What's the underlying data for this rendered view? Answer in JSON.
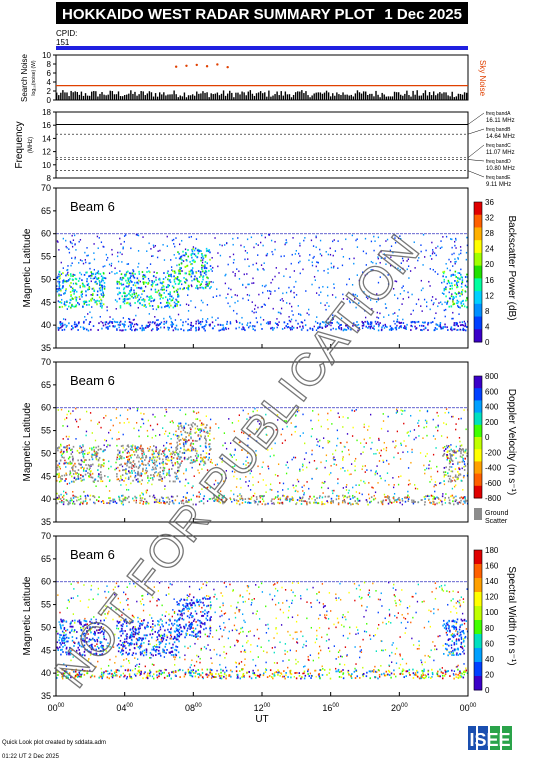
{
  "header": {
    "title": "HOKKAIDO WEST RADAR SUMMARY PLOT",
    "date": "1 Dec 2025",
    "cpid_label": "CPID:",
    "cpid_value": "151"
  },
  "noise_panel": {
    "ylabel": "Search Noise",
    "ylabel_sub": "log₁₀(noise) (W)",
    "right_label": "Sky Noise",
    "yticks": [
      "0",
      "2",
      "4",
      "6",
      "8",
      "10"
    ],
    "ylim": [
      0,
      10
    ],
    "baseline": 3.2,
    "cluster_values": [
      7.4,
      7.6,
      7.8,
      7.5,
      7.9,
      7.3
    ],
    "cluster_times": [
      7.0,
      7.6,
      8.2,
      8.8,
      9.4,
      10.0
    ]
  },
  "freq_panel": {
    "ylabel": "Frequency",
    "ylabel_sub": "(MHz)",
    "yticks": [
      "8",
      "10",
      "12",
      "14",
      "16",
      "18"
    ],
    "ylim": [
      8,
      18
    ],
    "bands": [
      {
        "label": "freq bandA",
        "value": "16.11 MHz",
        "mhz": 16.11
      },
      {
        "label": "freq bandB",
        "value": "14.64 MHz",
        "mhz": 14.64
      },
      {
        "label": "freq bandC",
        "value": "11.07 MHz",
        "mhz": 11.07
      },
      {
        "label": "freq bandD",
        "value": "10.80 MHz",
        "mhz": 10.8
      },
      {
        "label": "freq bandE",
        "value": "9.11 MHz",
        "mhz": 9.11
      }
    ]
  },
  "panels": [
    {
      "beam": "Beam  6",
      "ylabel": "Magnetic Latitude",
      "yticks": [
        "35",
        "40",
        "45",
        "50",
        "55",
        "60",
        "65",
        "70"
      ],
      "cb_label": "Backscatter Power (dB)",
      "cb_ticks": [
        "0",
        "4",
        "8",
        "12",
        "16",
        "20",
        "24",
        "28",
        "32",
        "36"
      ],
      "cb_colors": [
        "#3a00c8",
        "#0040ff",
        "#0090ff",
        "#00d0ff",
        "#00ffa0",
        "#20e000",
        "#a0ff00",
        "#ffff00",
        "#ffb000",
        "#ff6000",
        "#e00000"
      ]
    },
    {
      "beam": "Beam  6",
      "ylabel": "Magnetic Latitude",
      "yticks": [
        "35",
        "40",
        "45",
        "50",
        "55",
        "60",
        "65",
        "70"
      ],
      "cb_label": "Doppler Velocity (m s⁻¹)",
      "cb_ticks": [
        "800",
        "600",
        "400",
        "200",
        "0",
        "-200",
        "-400",
        "-600",
        "-800"
      ],
      "cb_colors": [
        "#3a00c8",
        "#0040ff",
        "#00a0ff",
        "#00e0c0",
        "#40ff00",
        "#c0ff00",
        "#ffff00",
        "#ffa000",
        "#ff6000",
        "#e00000"
      ],
      "ground": "Ground",
      "scatter": "Scatter"
    },
    {
      "beam": "Beam  6",
      "ylabel": "Magnetic Latitude",
      "yticks": [
        "35",
        "40",
        "45",
        "50",
        "55",
        "60",
        "65",
        "70"
      ],
      "cb_label": "Spectral Width (m s⁻¹)",
      "cb_ticks": [
        "180",
        "160",
        "140",
        "120",
        "100",
        "80",
        "60",
        "40",
        "20",
        "0"
      ],
      "cb_colors": [
        "#e00000",
        "#ff6000",
        "#ffa000",
        "#ffff00",
        "#c0ff00",
        "#40ff00",
        "#00e0c0",
        "#00a0ff",
        "#0040ff",
        "#3a00c8"
      ]
    }
  ],
  "xaxis": {
    "label": "UT",
    "ticks": [
      {
        "h": "00",
        "m": "00"
      },
      {
        "h": "04",
        "m": "00"
      },
      {
        "h": "08",
        "m": "00"
      },
      {
        "h": "12",
        "m": "00"
      },
      {
        "h": "16",
        "m": "00"
      },
      {
        "h": "20",
        "m": "00"
      },
      {
        "h": "00",
        "m": "00"
      }
    ]
  },
  "watermark": "NOT FOR PUBLICATION",
  "footer": {
    "line1": "Quick Look plot created by sddata.adm",
    "line2": "01:22 UT  2 Dec 2025",
    "logo_text": "ISEE"
  },
  "chart_data": {
    "type": "heatmap",
    "title": "HOKKAIDO WEST RADAR SUMMARY PLOT",
    "xlabel": "UT",
    "ylabel": "Magnetic Latitude",
    "xlim": [
      0,
      24
    ],
    "ylim": [
      35,
      70
    ],
    "regions": [
      {
        "t0": 0.0,
        "t1": 2.8,
        "lat0": 44,
        "lat1": 52,
        "kind": "ionospheric"
      },
      {
        "t0": 3.5,
        "t1": 7.2,
        "lat0": 44,
        "lat1": 52,
        "kind": "ionospheric"
      },
      {
        "t0": 7.0,
        "t1": 9.0,
        "lat0": 48,
        "lat1": 57,
        "kind": "ionospheric"
      },
      {
        "t0": 22.5,
        "t1": 24.0,
        "lat0": 44,
        "lat1": 52,
        "kind": "ionospheric"
      },
      {
        "t0": 0.0,
        "t1": 24.0,
        "lat0": 39,
        "lat1": 41,
        "kind": "near-range"
      }
    ],
    "range_ceiling": 60
  }
}
